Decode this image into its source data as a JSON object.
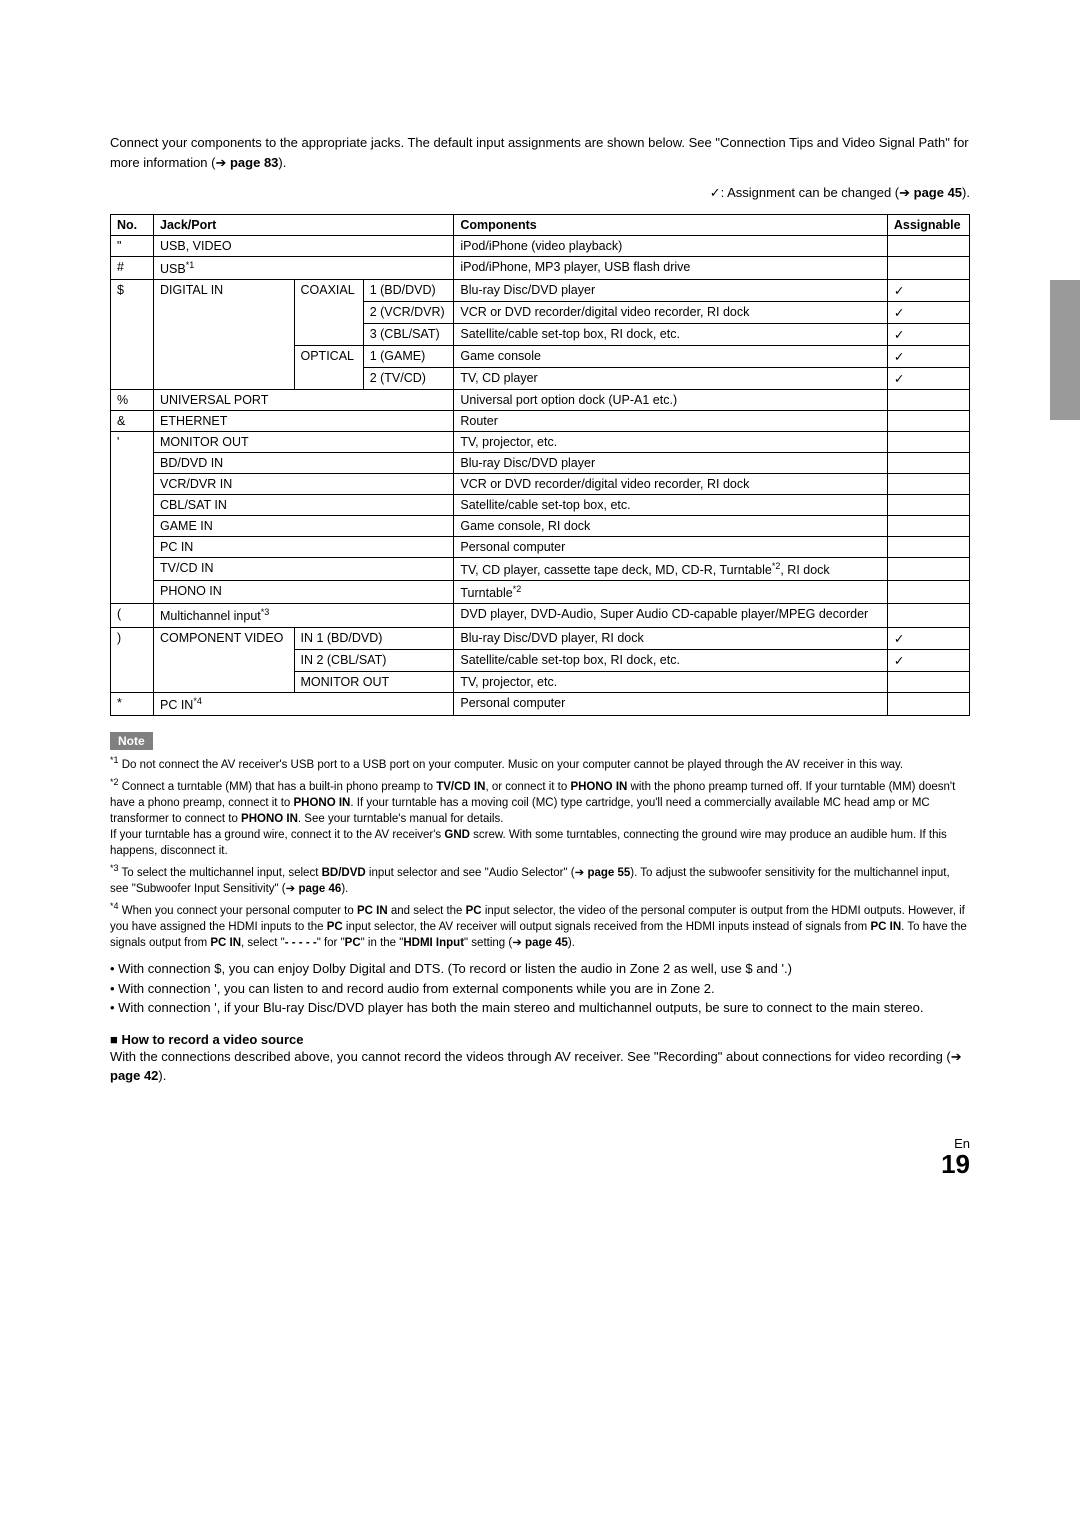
{
  "intro": {
    "line1_a": "Connect your components to the appropriate jacks. The default input assignments are shown below. See ",
    "line1_b": "\"Connection Tips and Video Signal Path\"",
    "line1_c": " for more information (➔ ",
    "line1_page": "page 83",
    "line1_d": ")."
  },
  "assign_note_a": "✓: Assignment can be changed (➔ ",
  "assign_note_page": "page 45",
  "assign_note_b": ").",
  "headers": {
    "no": "No.",
    "jack": "Jack/Port",
    "components": "Components",
    "assignable": "Assignable"
  },
  "rows": [
    {
      "no": "\"",
      "jack": "USB, VIDEO",
      "comp": "iPod/iPhone (video playback)",
      "assign": ""
    },
    {
      "no": "#",
      "jack": "USB*1",
      "comp": "iPod/iPhone, MP3 player, USB flash drive",
      "assign": ""
    },
    {
      "no": "$",
      "jack1": "DIGITAL IN",
      "jack2": "COAXIAL",
      "jack3": "1 (BD/DVD)",
      "comp": "Blu-ray Disc/DVD player",
      "assign": "✓"
    },
    {
      "jack3": "2 (VCR/DVR)",
      "comp": "VCR or DVD recorder/digital video recorder, RI dock",
      "assign": "✓"
    },
    {
      "jack3": "3 (CBL/SAT)",
      "comp": "Satellite/cable set-top box, RI dock, etc.",
      "assign": "✓"
    },
    {
      "jack2": "OPTICAL",
      "jack3": "1 (GAME)",
      "comp": "Game console",
      "assign": "✓"
    },
    {
      "jack3": "2 (TV/CD)",
      "comp": "TV, CD player",
      "assign": "✓"
    },
    {
      "no": "%",
      "jack": "UNIVERSAL PORT",
      "comp": "Universal port option dock (UP-A1 etc.)",
      "assign": ""
    },
    {
      "no": "&",
      "jack": "ETHERNET",
      "comp": "Router",
      "assign": ""
    },
    {
      "no": "'",
      "jack": "MONITOR OUT",
      "comp": "TV, projector, etc.",
      "assign": ""
    },
    {
      "jack": "BD/DVD IN",
      "comp": "Blu-ray Disc/DVD player",
      "assign": ""
    },
    {
      "jack": "VCR/DVR IN",
      "comp": "VCR or DVD recorder/digital video recorder, RI dock",
      "assign": ""
    },
    {
      "jack": "CBL/SAT IN",
      "comp": "Satellite/cable set-top box, etc.",
      "assign": ""
    },
    {
      "jack": "GAME IN",
      "comp": "Game console, RI dock",
      "assign": ""
    },
    {
      "jack": "PC IN",
      "comp": "Personal computer",
      "assign": ""
    },
    {
      "jack": "TV/CD IN",
      "comp": "TV, CD player, cassette tape deck, MD, CD-R, Turntable*2, RI dock",
      "assign": ""
    },
    {
      "jack": "PHONO IN",
      "comp": "Turntable*2",
      "assign": ""
    },
    {
      "no": "(",
      "jack": "Multichannel input*3",
      "comp": "DVD player, DVD-Audio, Super Audio CD-capable player/MPEG decorder",
      "assign": ""
    },
    {
      "no": ")",
      "jack1": "COMPONENT VIDEO",
      "jack2": "IN 1 (BD/DVD)",
      "comp": "Blu-ray Disc/DVD player, RI dock",
      "assign": "✓"
    },
    {
      "jack2": "IN 2 (CBL/SAT)",
      "comp": "Satellite/cable set-top box, RI dock, etc.",
      "assign": "✓"
    },
    {
      "jack2": "MONITOR OUT",
      "comp": "TV, projector, etc.",
      "assign": ""
    },
    {
      "no": "*",
      "jack": "PC IN*4",
      "comp": "Personal computer",
      "assign": ""
    }
  ],
  "note_label": "Note",
  "notes": {
    "n1": "Do not connect the AV receiver's USB port to a USB port on your computer. Music on your computer cannot be played through the AV receiver in this way.",
    "n2_a": "Connect a turntable (MM) that has a built-in phono preamp to ",
    "n2_b": "TV/CD IN",
    "n2_c": ", or connect it to ",
    "n2_d": "PHONO IN",
    "n2_e": " with the phono preamp turned off. If your turntable (MM) doesn't have a phono preamp, connect it to ",
    "n2_f": "PHONO IN",
    "n2_g": ". If your turntable has a moving coil (MC) type cartridge, you'll need a commercially available MC head amp or MC transformer to connect to ",
    "n2_h": "PHONO IN",
    "n2_i": ". See your turntable's manual for details.",
    "n2_j": "If your turntable has a ground wire, connect it to the AV receiver's ",
    "n2_k": "GND",
    "n2_l": " screw. With some turntables, connecting the ground wire may produce an audible hum. If this happens, disconnect it.",
    "n3_a": "To select the multichannel input, select ",
    "n3_b": "BD/DVD",
    "n3_c": " input selector and see \"Audio Selector\" (➔ ",
    "n3_page": "page 55",
    "n3_d": "). To adjust the subwoofer sensitivity for the multichannel input, see \"Subwoofer Input Sensitivity\" (➔ ",
    "n3_page2": "page 46",
    "n3_e": ").",
    "n4_a": "When you connect your personal computer to ",
    "n4_b": "PC IN",
    "n4_c": " and select the ",
    "n4_d": "PC",
    "n4_e": " input selector, the video of the personal computer is output from the HDMI outputs. However, if you have assigned the HDMI inputs to the ",
    "n4_f": "PC",
    "n4_g": " input selector, the AV receiver will output signals received from the HDMI inputs instead of signals from ",
    "n4_h": "PC IN",
    "n4_i": ". To have the signals output from ",
    "n4_j": "PC IN",
    "n4_k": ", select \"",
    "n4_l": "- - - - -",
    "n4_m": "\" for \"",
    "n4_n": "PC",
    "n4_o": "\" in the \"",
    "n4_p": "HDMI Input",
    "n4_q": "\" setting (➔ ",
    "n4_page": "page 45",
    "n4_r": ")."
  },
  "body_notes": {
    "b1": "• With connection $, you can enjoy Dolby Digital and DTS. (To record or listen the audio in Zone 2 as well, use $ and '.)",
    "b2": "• With connection ', you can listen to and record audio from external components while you are in Zone 2.",
    "b3": "• With connection ', if your Blu-ray Disc/DVD player has both the main stereo and multichannel outputs, be sure to connect to the main stereo."
  },
  "how_to": {
    "title": "■ How to record a video source",
    "body_a": "With the connections described above, you cannot record the videos through AV receiver. See \"Recording\" about connections for video recording (➔ ",
    "body_page": "page 42",
    "body_b": ")."
  },
  "pagination": {
    "lang": "En",
    "num": "19"
  }
}
